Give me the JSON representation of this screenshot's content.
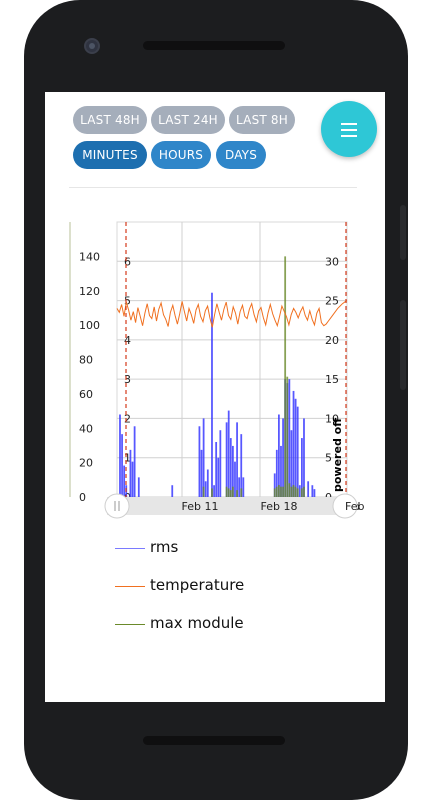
{
  "range_buttons": [
    {
      "label": "LAST 48H"
    },
    {
      "label": "LAST 24H"
    },
    {
      "label": "LAST 8H"
    }
  ],
  "granularity_buttons": [
    {
      "label": "MINUTES"
    },
    {
      "label": "HOURS"
    },
    {
      "label": "DAYS"
    }
  ],
  "menu": {
    "icon": "hamburger-menu-icon"
  },
  "colors": {
    "rms": "#3a3aff",
    "temperature": "#f07020",
    "max_module": "#6a8a2a",
    "gray_button": "#a5aebb",
    "blue_button": "#2f86c9",
    "fab": "#2ec7d6"
  },
  "chart_data": {
    "type": "line",
    "left_axis_ticks": [
      "0",
      "20",
      "40",
      "60",
      "80",
      "100",
      "120",
      "140"
    ],
    "inner_axis_ticks": [
      "0",
      "1",
      "2",
      "3",
      "4",
      "5",
      "6"
    ],
    "right_axis_ticks": [
      "0",
      "5",
      "10",
      "15",
      "20",
      "25",
      "30"
    ],
    "x_ticks": [
      "Feb 11",
      "Feb 18",
      "Feb"
    ],
    "annotation": "powered off",
    "series": [
      {
        "name": "rms",
        "kind": "bar",
        "axis": "inner",
        "values": [
          0,
          2.1,
          1.6,
          0.8,
          0.3,
          0,
          1.2,
          0.9,
          1.8,
          0,
          0.5,
          0,
          0,
          0,
          0,
          0,
          0,
          0,
          0,
          0,
          0,
          0,
          0,
          0,
          0,
          0,
          0.3,
          0,
          0,
          0,
          0,
          0,
          0,
          0,
          0,
          0,
          0,
          0,
          0,
          1.8,
          1.2,
          2.0,
          0.4,
          0.7,
          0,
          5.2,
          0.3,
          1.4,
          1.0,
          1.7,
          0,
          0,
          1.9,
          2.2,
          1.5,
          1.3,
          0.9,
          1.9,
          0.5,
          1.6,
          0.5,
          0,
          0,
          0,
          0,
          0,
          0,
          0,
          0,
          0,
          0,
          0,
          0,
          0,
          0,
          0.6,
          1.2,
          2.1,
          1.3,
          2.0,
          3.0,
          2.9,
          3.0,
          1.7,
          2.7,
          2.5,
          2.3,
          0.3,
          1.5,
          2.0,
          0,
          0.4,
          0,
          0.3,
          0.2,
          0,
          0,
          0,
          0,
          0,
          0,
          0,
          0,
          0,
          0,
          0,
          0,
          0,
          0,
          0
        ]
      },
      {
        "name": "max module",
        "kind": "bar",
        "axis": "left",
        "values": [
          0,
          0,
          0,
          0,
          0,
          0,
          0,
          0,
          0,
          0,
          0,
          0,
          0,
          0,
          0,
          0,
          0,
          0,
          0,
          0,
          0,
          0,
          0,
          0,
          0,
          0,
          0,
          0,
          0,
          0,
          0,
          0,
          0,
          0,
          0,
          0,
          0,
          0,
          0,
          0,
          0,
          6,
          0,
          0,
          0,
          5,
          0,
          0,
          0,
          0,
          0,
          0,
          6,
          5,
          4,
          6,
          0,
          4,
          0,
          5,
          0,
          0,
          0,
          0,
          0,
          0,
          0,
          0,
          0,
          0,
          0,
          0,
          0,
          0,
          0,
          5,
          6,
          7,
          6,
          6,
          140,
          70,
          8,
          6,
          7,
          6,
          5,
          0,
          5,
          6,
          0,
          0,
          0,
          0,
          0,
          0,
          0,
          0,
          0,
          0,
          0,
          0,
          0,
          0,
          0,
          0,
          0,
          0,
          0,
          0
        ]
      },
      {
        "name": "temperature",
        "kind": "line",
        "axis": "right",
        "values": [
          24,
          23.5,
          24.5,
          23,
          24.8,
          23.8,
          22.5,
          23.6,
          22.2,
          24.1,
          23,
          21.8,
          23.4,
          24.6,
          23.1,
          22.7,
          24.2,
          22.4,
          23.9,
          24.7,
          23.2,
          22.6,
          21.7,
          23.5,
          24.4,
          23.1,
          22,
          23.3,
          24.9,
          23.6,
          22.4,
          24,
          23.2,
          22.1,
          23.8,
          24.5,
          23,
          22.3,
          23.7,
          24.3,
          22.8,
          21.6,
          23.2,
          24.6,
          23.5,
          22.5,
          23.9,
          24.8,
          23.1,
          22.6,
          24.2,
          23.4,
          22,
          23.6,
          24.4,
          23,
          22.7,
          23.9,
          24.6,
          23.2,
          22.3,
          23.7,
          24.1,
          22.8,
          21.9,
          23.4,
          24.5,
          23.3,
          22.5,
          21.8,
          23,
          24.3,
          23.6,
          22.9,
          21.9,
          23.2,
          24,
          23.5,
          22.8,
          23.6,
          24.2,
          23.1,
          22.5,
          23.7,
          22.6,
          21.9,
          23.4,
          24,
          22.2,
          21.8,
          22,
          22.4,
          22.8,
          23.2,
          23.6,
          24,
          24.3,
          24.6,
          24.8,
          25
        ]
      }
    ],
    "ranges": {
      "left": [
        0,
        160
      ],
      "inner": [
        0,
        7
      ],
      "right": [
        0,
        35
      ]
    }
  },
  "legend": [
    {
      "name": "rms"
    },
    {
      "name": "temperature"
    },
    {
      "name": "max module"
    }
  ]
}
